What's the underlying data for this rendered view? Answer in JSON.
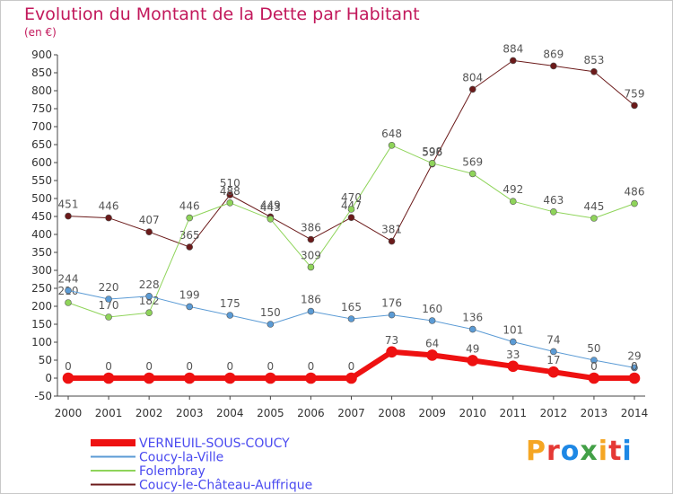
{
  "title": "Evolution du Montant de la Dette par Habitant",
  "unit": "(en €)",
  "logo": {
    "text": "Proxiti",
    "colors": [
      "#f5a623",
      "#e53935",
      "#1e88e5",
      "#43a047",
      "#f5a623",
      "#e53935",
      "#1e88e5"
    ]
  },
  "chart_data": {
    "type": "line",
    "categories": [
      "2000",
      "2001",
      "2002",
      "2003",
      "2004",
      "2005",
      "2006",
      "2007",
      "2008",
      "2009",
      "2010",
      "2011",
      "2012",
      "2013",
      "2014"
    ],
    "ylim": [
      -50,
      900
    ],
    "yticks": [
      -50,
      0,
      50,
      100,
      150,
      200,
      250,
      300,
      350,
      400,
      450,
      500,
      550,
      600,
      650,
      700,
      750,
      800,
      850,
      900
    ],
    "grid": false,
    "legend_position": "bottom-left",
    "series": [
      {
        "name": "Coucy-le-Château-Auffrique",
        "color": "#6b1a1a",
        "width": 1,
        "values": [
          451,
          446,
          407,
          365,
          510,
          449,
          386,
          447,
          381,
          596,
          804,
          884,
          869,
          853,
          759
        ]
      },
      {
        "name": "Folembray",
        "color": "#8fd45a",
        "width": 1,
        "values": [
          210,
          170,
          182,
          446,
          488,
          443,
          309,
          470,
          648,
          598,
          569,
          492,
          463,
          445,
          486
        ]
      },
      {
        "name": "Coucy-la-Ville",
        "color": "#5b9bd5",
        "width": 1,
        "values": [
          244,
          220,
          228,
          199,
          175,
          150,
          186,
          165,
          176,
          160,
          136,
          101,
          74,
          50,
          29
        ]
      },
      {
        "name": "VERNEUIL-SOUS-COUCY",
        "color": "#ee1111",
        "width": 6,
        "values": [
          0,
          0,
          0,
          0,
          0,
          0,
          0,
          0,
          73,
          64,
          49,
          33,
          17,
          0,
          0
        ]
      }
    ],
    "legend_order": [
      "VERNEUIL-SOUS-COUCY",
      "Coucy-la-Ville",
      "Folembray",
      "Coucy-le-Château-Auffrique"
    ]
  }
}
